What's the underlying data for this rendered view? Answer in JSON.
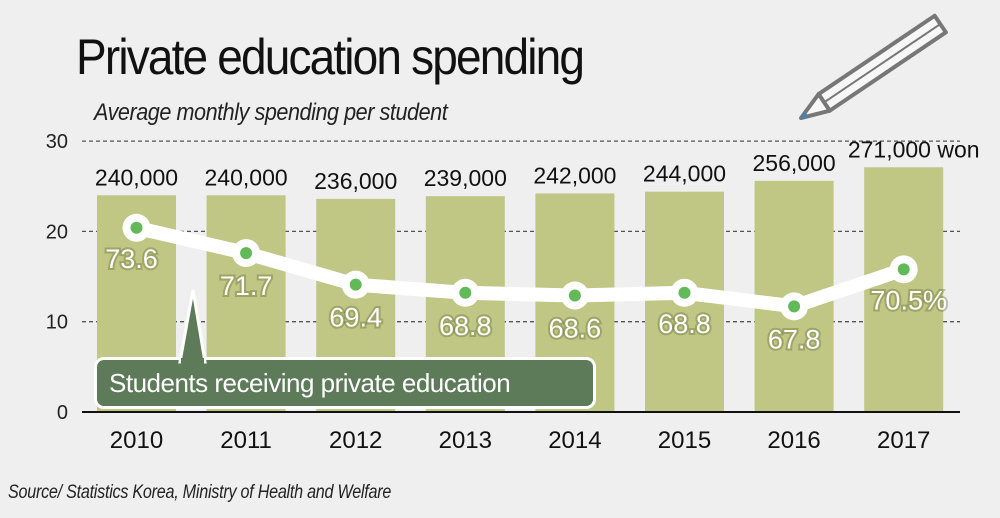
{
  "header": {
    "title": "Private education spending",
    "subtitle": "Average monthly spending per student"
  },
  "legend": {
    "label": "Students receiving private education"
  },
  "source": "Source/ Statistics Korea, Ministry of Health and Welfare",
  "colors": {
    "bar": "#c0c683",
    "line": "#ffffff",
    "point": "#62b957",
    "legend_bg": "#5d7a59",
    "background": "#efefef"
  },
  "chart_data": {
    "type": "bar+line",
    "title": "Private education spending",
    "subtitle": "Average monthly spending per student",
    "categories": [
      "2010",
      "2011",
      "2012",
      "2013",
      "2014",
      "2015",
      "2016",
      "2017"
    ],
    "y_ticks": [
      "0",
      "10",
      "20",
      "30"
    ],
    "ylim": [
      0,
      30
    ],
    "grid": "dashed at 10, 20, 30",
    "series": [
      {
        "name": "Average monthly spending per student (10,000 won)",
        "type": "bar",
        "values": [
          24.0,
          24.0,
          23.6,
          23.9,
          24.2,
          24.4,
          25.6,
          27.1
        ],
        "labels": [
          "240,000",
          "240,000",
          "236,000",
          "239,000",
          "242,000",
          "244,000",
          "256,000",
          "271,000 won"
        ]
      },
      {
        "name": "Students receiving private education",
        "type": "line",
        "unit": "%",
        "values": [
          73.6,
          71.7,
          69.4,
          68.8,
          68.6,
          68.8,
          67.8,
          70.5
        ],
        "labels": [
          "73.6",
          "71.7",
          "69.4",
          "68.8",
          "68.6",
          "68.8",
          "67.8",
          "70.5%"
        ],
        "plot_y": [
          20.4,
          17.6,
          14.1,
          13.2,
          12.9,
          13.2,
          11.7,
          15.8
        ]
      }
    ],
    "legend_position": "bottom-left inside plot"
  }
}
